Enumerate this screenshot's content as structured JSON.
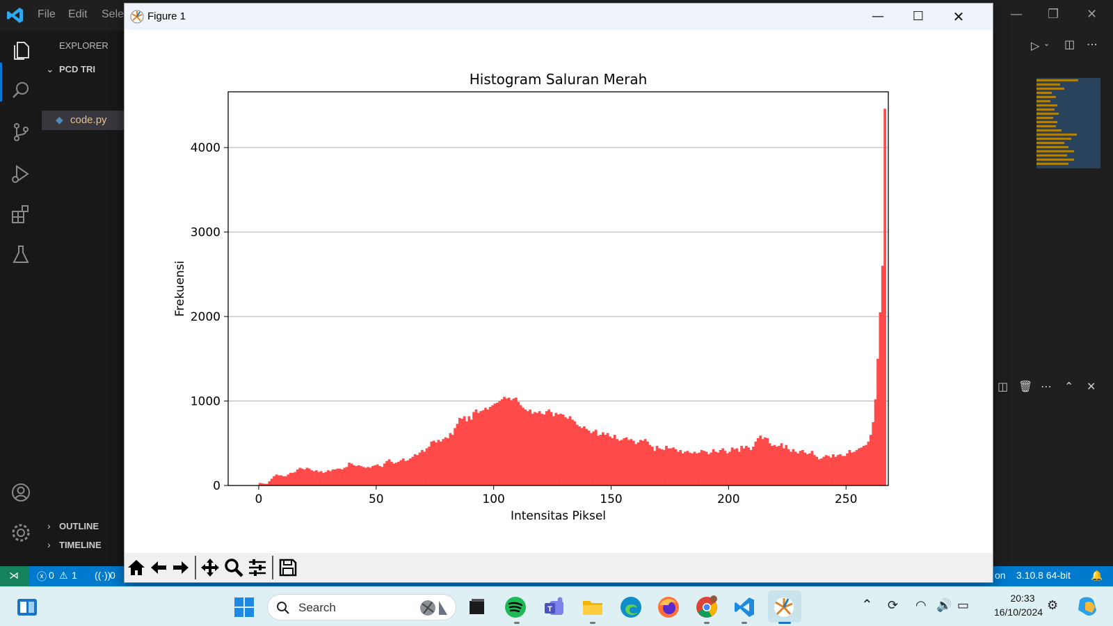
{
  "vscode": {
    "menu": [
      "File",
      "Edit",
      "Sele"
    ],
    "sidebar": {
      "explorer_label": "EXPLORER",
      "folder": "PCD TRI",
      "file": "code.py",
      "outline": "OUTLINE",
      "timeline": "TIMELINE"
    },
    "status": {
      "errors": "0",
      "warnings": "1",
      "ports": "0",
      "lang_fragment": "on",
      "interpreter": "3.10.8 64-bit"
    }
  },
  "figure_window": {
    "title": "Figure 1",
    "toolbar": [
      "home-icon",
      "back-arrow-icon",
      "forward-arrow-icon",
      "pan-icon",
      "zoom-icon",
      "configure-subplots-icon",
      "save-icon"
    ]
  },
  "chart_data": {
    "type": "bar",
    "title": "Histogram Saluran Merah",
    "xlabel": "Intensitas Piksel",
    "ylabel": "Frekuensi",
    "xlim": [
      -13,
      268
    ],
    "ylim": [
      0,
      4660
    ],
    "xticks": [
      0,
      50,
      100,
      150,
      200,
      250
    ],
    "yticks": [
      0,
      1000,
      2000,
      3000,
      4000
    ],
    "grid": "horizontal",
    "bar_color": "#ff4a4a",
    "bins_start": 0,
    "bin_width": 1,
    "values": [
      30,
      25,
      20,
      20,
      50,
      80,
      110,
      130,
      120,
      120,
      110,
      110,
      130,
      150,
      150,
      160,
      190,
      210,
      200,
      190,
      210,
      200,
      180,
      170,
      180,
      160,
      170,
      150,
      160,
      180,
      170,
      190,
      190,
      200,
      200,
      190,
      210,
      220,
      270,
      260,
      240,
      230,
      240,
      230,
      220,
      210,
      220,
      210,
      230,
      240,
      250,
      230,
      220,
      260,
      290,
      310,
      280,
      260,
      270,
      280,
      300,
      320,
      290,
      300,
      320,
      340,
      370,
      360,
      390,
      420,
      400,
      440,
      460,
      520,
      530,
      510,
      540,
      520,
      550,
      570,
      560,
      620,
      600,
      680,
      730,
      800,
      790,
      820,
      760,
      820,
      780,
      870,
      900,
      860,
      880,
      890,
      920,
      900,
      930,
      950,
      970,
      980,
      1000,
      1020,
      1050,
      1030,
      1040,
      1010,
      1030,
      1040,
      990,
      950,
      920,
      900,
      880,
      900,
      850,
      870,
      860,
      880,
      850,
      840,
      880,
      900,
      870,
      820,
      860,
      840,
      850,
      840,
      810,
      790,
      820,
      780,
      760,
      720,
      700,
      680,
      700,
      670,
      650,
      620,
      640,
      660,
      590,
      600,
      630,
      600,
      620,
      580,
      560,
      600,
      550,
      530,
      540,
      560,
      570,
      540,
      550,
      530,
      490,
      510,
      540,
      530,
      550,
      520,
      480,
      460,
      410,
      470,
      440,
      430,
      420,
      470,
      440,
      440,
      450,
      430,
      400,
      420,
      380,
      400,
      410,
      390,
      380,
      400,
      380,
      390,
      420,
      410,
      400,
      370,
      390,
      430,
      400,
      390,
      420,
      440,
      410,
      380,
      400,
      450,
      430,
      440,
      400,
      470,
      440,
      470,
      450,
      420,
      460,
      520,
      560,
      590,
      550,
      570,
      560,
      500,
      470,
      480,
      460,
      470,
      500,
      440,
      480,
      430,
      400,
      430,
      400,
      380,
      410,
      420,
      390,
      370,
      380,
      410,
      360,
      340,
      310,
      320,
      340,
      360,
      350,
      330,
      370,
      340,
      360,
      370,
      350,
      350,
      380,
      420,
      390,
      400,
      420,
      440,
      450,
      470,
      480,
      520,
      600,
      750,
      1020,
      1500,
      2050,
      2600,
      4460
    ]
  },
  "taskbar": {
    "search_placeholder": "Search",
    "time": "20:33",
    "date": "16/10/2024"
  }
}
